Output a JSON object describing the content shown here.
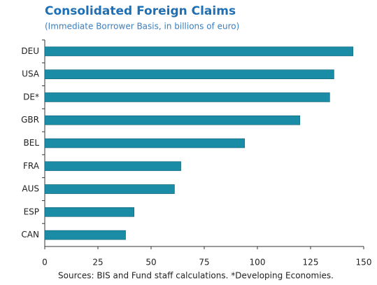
{
  "chart_data": {
    "type": "bar",
    "orientation": "horizontal",
    "title": "Consolidated Foreign Claims",
    "subtitle": "(Immediate Borrower Basis, in billions of euro)",
    "categories": [
      "DEU",
      "USA",
      "DE*",
      "GBR",
      "BEL",
      "FRA",
      "AUS",
      "ESP",
      "CAN"
    ],
    "values": [
      145,
      136,
      134,
      120,
      94,
      64,
      61,
      42,
      38
    ],
    "color": "#1b8ca6",
    "xlim": [
      0,
      150
    ],
    "xticks": [
      0,
      25,
      50,
      75,
      100,
      125,
      150
    ],
    "note": "Sources: BIS and Fund staff calculations. *Developing Economies."
  }
}
